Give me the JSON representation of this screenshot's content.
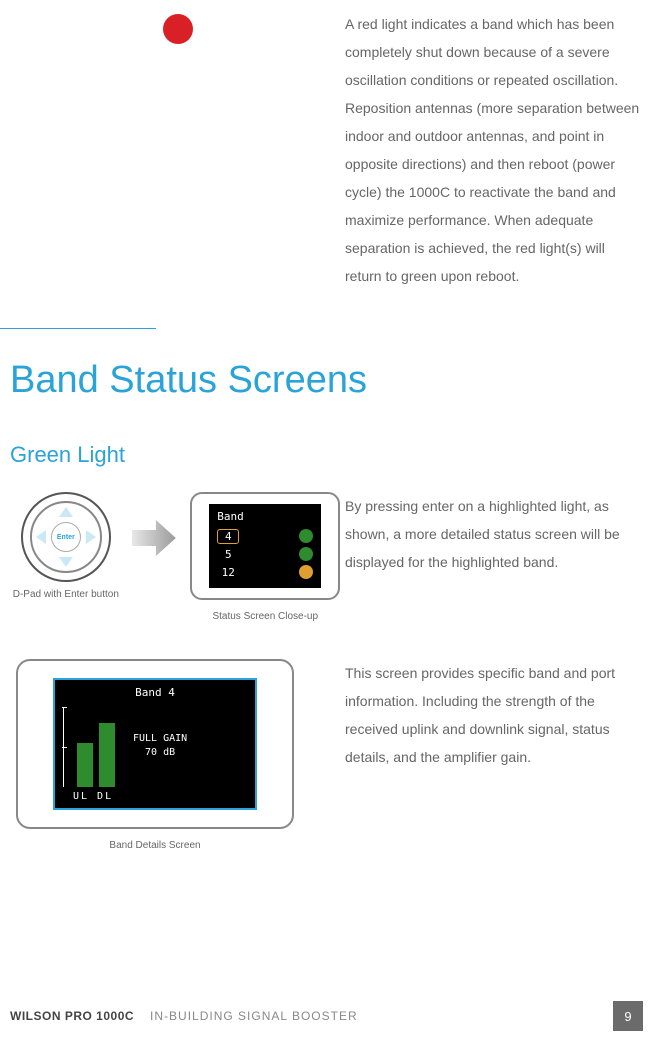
{
  "red_light": {
    "indicator_color": "#d92027",
    "description": "A red light indicates a band which has been completely shut down because of a severe oscillation conditions or repeated oscillation. Reposition antennas (more separation between indoor and outdoor antennas, and point in opposite directions) and then reboot (power cycle) the 1000C to reactivate the band and maximize performance. When adequate separation is achieved, the red light(s) will return to green upon reboot."
  },
  "divider_color": "#2aa3d9",
  "section_title": "Band Status Screens",
  "subsection_title": "Green Light",
  "heading_color": "#2aa3d9",
  "dpad": {
    "center_label": "Enter",
    "caption": "D-Pad with Enter button",
    "triangle_color": "#cbe9f5",
    "center_text_color": "#2aa3d9"
  },
  "arrow_color": "#bfbfbf",
  "status_screen": {
    "caption": "Status Screen Close-up",
    "lcd_bg": "#000000",
    "title": "Band",
    "highlight_color": "#e0a030",
    "rows": [
      {
        "band": "4",
        "selected": true,
        "dot_color": "#2e8b2e"
      },
      {
        "band": "5",
        "selected": false,
        "dot_color": "#2e8b2e"
      },
      {
        "band": "12",
        "selected": false,
        "dot_color": "#e0a030"
      }
    ]
  },
  "status_paragraph": "By pressing enter on a highlighted light, as shown, a more detailed status screen will be displayed for the highlighted band.",
  "details_screen": {
    "caption": "Band Details Screen",
    "lcd_bg": "#000000",
    "lcd_border": "#2aa3d9",
    "title": "Band 4",
    "gain_line1": "FULL GAIN",
    "gain_line2": "70 dB",
    "bar_color": "#2e8b2e",
    "bars": [
      {
        "label": "UL",
        "height_pct": 55
      },
      {
        "label": "DL",
        "height_pct": 80
      }
    ],
    "footer": "UL  DL"
  },
  "details_paragraph": "This screen provides specific band and port information. Including the strength of the received uplink and downlink signal, status details, and the amplifier gain.",
  "footer": {
    "product": "WILSON PRO 1000C",
    "sub": "IN-BUILDING SIGNAL BOOSTER",
    "page": "9",
    "page_bg": "#6b6b6b"
  }
}
